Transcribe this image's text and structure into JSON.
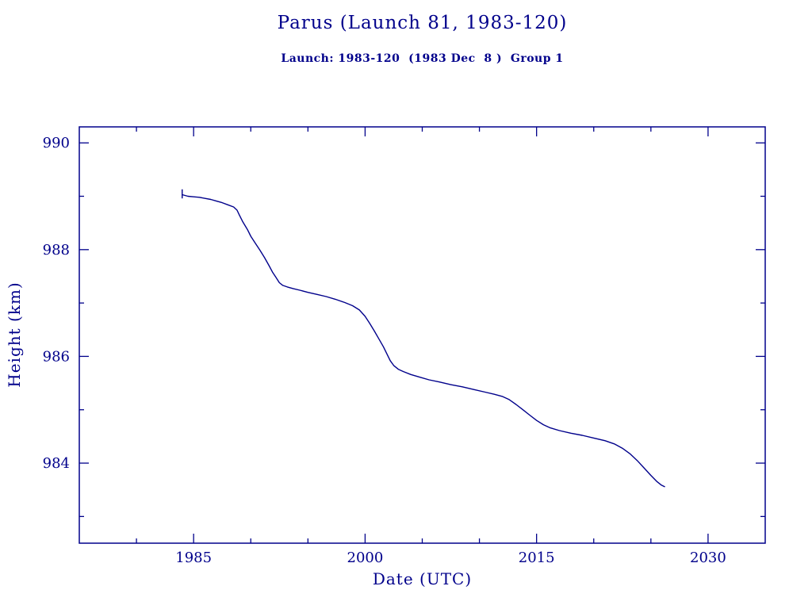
{
  "chart": {
    "title": "Parus (Launch 81, 1983-120)",
    "subtitle": "Launch: 1983-120  (1983 Dec  8 )  Group 1",
    "xlabel": "Date (UTC)",
    "ylabel": "Height (km)"
  },
  "colors": {
    "ink": "#00008b",
    "background": "#ffffff"
  },
  "chart_data": {
    "type": "line",
    "title": "Parus (Launch 81, 1983-120)",
    "subtitle": "Launch: 1983-120  (1983 Dec  8 )  Group 1",
    "xlabel": "Date (UTC)",
    "ylabel": "Height (km)",
    "xlim": [
      1975,
      2035
    ],
    "ylim": [
      982.5,
      990.3
    ],
    "x_ticks": [
      1985,
      2000,
      2015,
      2030
    ],
    "y_ticks": [
      984,
      986,
      988,
      990
    ],
    "x_minor_step": 5,
    "y_minor_step": 1,
    "grid": false,
    "legend": "none",
    "line_color": "#00008b",
    "start_marker": {
      "x": 1984.0,
      "y1": 988.96,
      "y2": 989.13
    },
    "series": [
      {
        "name": "height-km",
        "points": [
          [
            1984.0,
            989.03
          ],
          [
            1984.5,
            989.0
          ],
          [
            1985.0,
            988.99
          ],
          [
            1985.5,
            988.98
          ],
          [
            1986.0,
            988.96
          ],
          [
            1986.5,
            988.94
          ],
          [
            1987.0,
            988.91
          ],
          [
            1987.5,
            988.88
          ],
          [
            1988.0,
            988.84
          ],
          [
            1988.5,
            988.8
          ],
          [
            1988.8,
            988.74
          ],
          [
            1989.0,
            988.65
          ],
          [
            1989.3,
            988.52
          ],
          [
            1989.7,
            988.38
          ],
          [
            1990.0,
            988.25
          ],
          [
            1990.4,
            988.12
          ],
          [
            1990.8,
            987.99
          ],
          [
            1991.2,
            987.85
          ],
          [
            1991.6,
            987.7
          ],
          [
            1991.9,
            987.58
          ],
          [
            1992.2,
            987.48
          ],
          [
            1992.5,
            987.38
          ],
          [
            1992.8,
            987.33
          ],
          [
            1993.2,
            987.3
          ],
          [
            1993.7,
            987.27
          ],
          [
            1994.3,
            987.24
          ],
          [
            1995.0,
            987.2
          ],
          [
            1995.8,
            987.16
          ],
          [
            1996.6,
            987.12
          ],
          [
            1997.4,
            987.07
          ],
          [
            1998.2,
            987.01
          ],
          [
            1998.9,
            986.95
          ],
          [
            1999.5,
            986.87
          ],
          [
            2000.0,
            986.75
          ],
          [
            2000.4,
            986.62
          ],
          [
            2000.8,
            986.48
          ],
          [
            2001.2,
            986.33
          ],
          [
            2001.6,
            986.18
          ],
          [
            2001.9,
            986.05
          ],
          [
            2002.2,
            985.92
          ],
          [
            2002.5,
            985.83
          ],
          [
            2002.9,
            985.76
          ],
          [
            2003.4,
            985.71
          ],
          [
            2004.0,
            985.66
          ],
          [
            2004.8,
            985.61
          ],
          [
            2005.6,
            985.56
          ],
          [
            2006.5,
            985.52
          ],
          [
            2007.5,
            985.47
          ],
          [
            2008.5,
            985.43
          ],
          [
            2009.5,
            985.38
          ],
          [
            2010.5,
            985.33
          ],
          [
            2011.3,
            985.29
          ],
          [
            2012.0,
            985.25
          ],
          [
            2012.6,
            985.19
          ],
          [
            2013.2,
            985.1
          ],
          [
            2013.8,
            985.0
          ],
          [
            2014.4,
            984.9
          ],
          [
            2015.0,
            984.8
          ],
          [
            2015.6,
            984.72
          ],
          [
            2016.2,
            984.66
          ],
          [
            2017.0,
            984.61
          ],
          [
            2018.0,
            984.56
          ],
          [
            2019.0,
            984.52
          ],
          [
            2020.0,
            984.47
          ],
          [
            2021.0,
            984.42
          ],
          [
            2021.8,
            984.36
          ],
          [
            2022.5,
            984.28
          ],
          [
            2023.2,
            984.17
          ],
          [
            2023.8,
            984.05
          ],
          [
            2024.4,
            983.91
          ],
          [
            2025.0,
            983.77
          ],
          [
            2025.5,
            983.66
          ],
          [
            2025.9,
            983.59
          ],
          [
            2026.2,
            983.56
          ]
        ]
      }
    ]
  }
}
